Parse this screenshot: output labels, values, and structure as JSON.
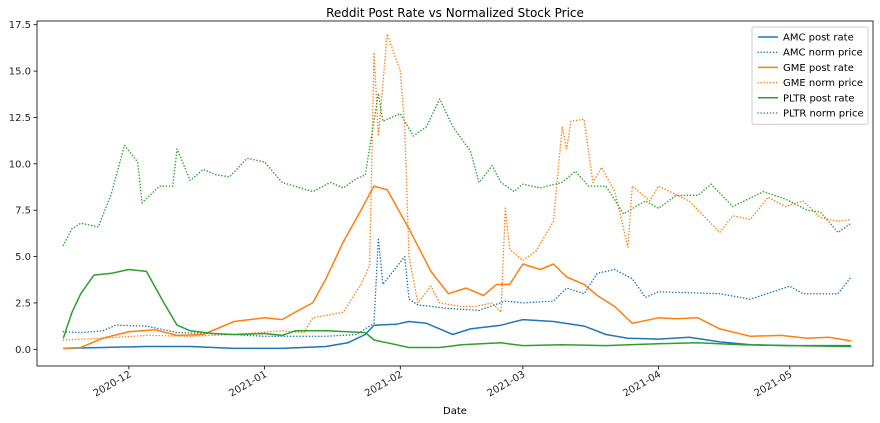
{
  "chart_data": {
    "type": "line",
    "title": "Reddit Post Rate vs Normalized Stock Price",
    "xlabel": "Date",
    "ylabel": "",
    "ylim": [
      -0.9,
      17.7
    ],
    "xlim": [
      "2020-11-10",
      "2021-05-20"
    ],
    "y_ticks": [
      "0.0",
      "2.5",
      "5.0",
      "7.5",
      "10.0",
      "12.5",
      "15.0",
      "17.5"
    ],
    "x_ticks": [
      {
        "date": "2020-12-01",
        "label": "2020-12"
      },
      {
        "date": "2021-01-01",
        "label": "2021-01"
      },
      {
        "date": "2021-02-01",
        "label": "2021-02"
      },
      {
        "date": "2021-03-01",
        "label": "2021-03"
      },
      {
        "date": "2021-04-01",
        "label": "2021-04"
      },
      {
        "date": "2021-05-01",
        "label": "2021-05"
      }
    ],
    "grid": false,
    "legend_position": "top-right",
    "series": [
      {
        "name": "AMC post rate",
        "color": "#1f77b4",
        "style": "solid",
        "points": [
          [
            "2020-11-16",
            0.05
          ],
          [
            "2020-11-25",
            0.1
          ],
          [
            "2020-12-05",
            0.15
          ],
          [
            "2020-12-15",
            0.15
          ],
          [
            "2020-12-25",
            0.05
          ],
          [
            "2021-01-05",
            0.05
          ],
          [
            "2021-01-15",
            0.15
          ],
          [
            "2021-01-20",
            0.35
          ],
          [
            "2021-01-24",
            0.8
          ],
          [
            "2021-01-26",
            1.3
          ],
          [
            "2021-01-31",
            1.35
          ],
          [
            "2021-02-03",
            1.5
          ],
          [
            "2021-02-07",
            1.4
          ],
          [
            "2021-02-11",
            1.0
          ],
          [
            "2021-02-13",
            0.8
          ],
          [
            "2021-02-17",
            1.1
          ],
          [
            "2021-02-24",
            1.3
          ],
          [
            "2021-03-01",
            1.6
          ],
          [
            "2021-03-08",
            1.5
          ],
          [
            "2021-03-15",
            1.25
          ],
          [
            "2021-03-20",
            0.8
          ],
          [
            "2021-03-25",
            0.6
          ],
          [
            "2021-04-01",
            0.55
          ],
          [
            "2021-04-08",
            0.65
          ],
          [
            "2021-04-15",
            0.4
          ],
          [
            "2021-04-22",
            0.25
          ],
          [
            "2021-05-01",
            0.2
          ],
          [
            "2021-05-15",
            0.2
          ]
        ]
      },
      {
        "name": "AMC norm price",
        "color": "#1f77b4",
        "style": "dotted",
        "points": [
          [
            "2020-11-16",
            0.95
          ],
          [
            "2020-11-20",
            0.9
          ],
          [
            "2020-11-25",
            1.0
          ],
          [
            "2020-11-28",
            1.3
          ],
          [
            "2020-12-05",
            1.25
          ],
          [
            "2020-12-12",
            0.9
          ],
          [
            "2020-12-20",
            0.85
          ],
          [
            "2021-01-01",
            0.7
          ],
          [
            "2021-01-15",
            0.7
          ],
          [
            "2021-01-22",
            0.8
          ],
          [
            "2021-01-26",
            1.4
          ],
          [
            "2021-01-27",
            6.0
          ],
          [
            "2021-01-28",
            3.5
          ],
          [
            "2021-02-02",
            5.0
          ],
          [
            "2021-02-03",
            2.7
          ],
          [
            "2021-02-05",
            2.4
          ],
          [
            "2021-02-12",
            2.2
          ],
          [
            "2021-02-19",
            2.1
          ],
          [
            "2021-02-25",
            2.6
          ],
          [
            "2021-03-01",
            2.5
          ],
          [
            "2021-03-08",
            2.6
          ],
          [
            "2021-03-11",
            3.3
          ],
          [
            "2021-03-15",
            3.0
          ],
          [
            "2021-03-18",
            4.1
          ],
          [
            "2021-03-22",
            4.3
          ],
          [
            "2021-03-26",
            3.8
          ],
          [
            "2021-03-29",
            2.8
          ],
          [
            "2021-04-01",
            3.1
          ],
          [
            "2021-04-15",
            3.0
          ],
          [
            "2021-04-22",
            2.7
          ],
          [
            "2021-05-01",
            3.4
          ],
          [
            "2021-05-04",
            3.0
          ],
          [
            "2021-05-12",
            3.0
          ],
          [
            "2021-05-15",
            3.9
          ]
        ]
      },
      {
        "name": "GME post rate",
        "color": "#ff7f0e",
        "style": "solid",
        "points": [
          [
            "2020-11-16",
            0.05
          ],
          [
            "2020-11-20",
            0.1
          ],
          [
            "2020-11-25",
            0.6
          ],
          [
            "2020-12-01",
            0.95
          ],
          [
            "2020-12-07",
            1.05
          ],
          [
            "2020-12-12",
            0.75
          ],
          [
            "2020-12-18",
            0.8
          ],
          [
            "2020-12-25",
            1.5
          ],
          [
            "2021-01-01",
            1.7
          ],
          [
            "2021-01-05",
            1.6
          ],
          [
            "2021-01-08",
            2.0
          ],
          [
            "2021-01-12",
            2.5
          ],
          [
            "2021-01-15",
            3.8
          ],
          [
            "2021-01-19",
            5.8
          ],
          [
            "2021-01-23",
            7.5
          ],
          [
            "2021-01-26",
            8.8
          ],
          [
            "2021-01-29",
            8.6
          ],
          [
            "2021-02-03",
            6.5
          ],
          [
            "2021-02-08",
            4.2
          ],
          [
            "2021-02-12",
            3.0
          ],
          [
            "2021-02-16",
            3.3
          ],
          [
            "2021-02-20",
            2.9
          ],
          [
            "2021-02-23",
            3.5
          ],
          [
            "2021-02-26",
            3.5
          ],
          [
            "2021-03-01",
            4.6
          ],
          [
            "2021-03-05",
            4.3
          ],
          [
            "2021-03-08",
            4.6
          ],
          [
            "2021-03-11",
            3.9
          ],
          [
            "2021-03-15",
            3.5
          ],
          [
            "2021-03-18",
            2.9
          ],
          [
            "2021-03-22",
            2.3
          ],
          [
            "2021-03-26",
            1.4
          ],
          [
            "2021-04-01",
            1.7
          ],
          [
            "2021-04-05",
            1.65
          ],
          [
            "2021-04-10",
            1.7
          ],
          [
            "2021-04-15",
            1.1
          ],
          [
            "2021-04-22",
            0.7
          ],
          [
            "2021-04-29",
            0.75
          ],
          [
            "2021-05-05",
            0.6
          ],
          [
            "2021-05-10",
            0.65
          ],
          [
            "2021-05-15",
            0.45
          ]
        ]
      },
      {
        "name": "GME norm price",
        "color": "#ff7f0e",
        "style": "dotted",
        "points": [
          [
            "2020-11-16",
            0.5
          ],
          [
            "2020-11-25",
            0.6
          ],
          [
            "2020-12-05",
            0.75
          ],
          [
            "2020-12-15",
            0.7
          ],
          [
            "2020-12-25",
            0.8
          ],
          [
            "2021-01-05",
            1.0
          ],
          [
            "2021-01-10",
            0.9
          ],
          [
            "2021-01-12",
            1.7
          ],
          [
            "2021-01-19",
            2.0
          ],
          [
            "2021-01-23",
            3.5
          ],
          [
            "2021-01-25",
            4.5
          ],
          [
            "2021-01-26",
            16.0
          ],
          [
            "2021-01-27",
            11.5
          ],
          [
            "2021-01-29",
            17.0
          ],
          [
            "2021-02-01",
            15.0
          ],
          [
            "2021-02-02",
            12.0
          ],
          [
            "2021-02-03",
            5.0
          ],
          [
            "2021-02-05",
            2.5
          ],
          [
            "2021-02-08",
            3.4
          ],
          [
            "2021-02-10",
            2.5
          ],
          [
            "2021-02-15",
            2.3
          ],
          [
            "2021-02-18",
            2.3
          ],
          [
            "2021-02-22",
            2.5
          ],
          [
            "2021-02-24",
            2.0
          ],
          [
            "2021-02-25",
            7.6
          ],
          [
            "2021-02-26",
            5.4
          ],
          [
            "2021-03-01",
            4.8
          ],
          [
            "2021-03-04",
            5.3
          ],
          [
            "2021-03-08",
            6.9
          ],
          [
            "2021-03-10",
            12.0
          ],
          [
            "2021-03-11",
            10.8
          ],
          [
            "2021-03-12",
            12.3
          ],
          [
            "2021-03-15",
            12.4
          ],
          [
            "2021-03-17",
            9.0
          ],
          [
            "2021-03-19",
            9.8
          ],
          [
            "2021-03-22",
            8.5
          ],
          [
            "2021-03-25",
            5.5
          ],
          [
            "2021-03-26",
            8.8
          ],
          [
            "2021-03-30",
            8.0
          ],
          [
            "2021-04-01",
            8.8
          ],
          [
            "2021-04-08",
            8.0
          ],
          [
            "2021-04-15",
            6.3
          ],
          [
            "2021-04-18",
            7.2
          ],
          [
            "2021-04-22",
            7.0
          ],
          [
            "2021-04-26",
            8.2
          ],
          [
            "2021-04-30",
            7.7
          ],
          [
            "2021-05-04",
            8.0
          ],
          [
            "2021-05-08",
            7.1
          ],
          [
            "2021-05-12",
            6.9
          ],
          [
            "2021-05-15",
            7.0
          ]
        ]
      },
      {
        "name": "PLTR post rate",
        "color": "#2ca02c",
        "style": "solid",
        "points": [
          [
            "2020-11-16",
            0.6
          ],
          [
            "2020-11-18",
            2.0
          ],
          [
            "2020-11-20",
            3.0
          ],
          [
            "2020-11-23",
            4.0
          ],
          [
            "2020-11-27",
            4.1
          ],
          [
            "2020-12-01",
            4.3
          ],
          [
            "2020-12-05",
            4.2
          ],
          [
            "2020-12-09",
            2.5
          ],
          [
            "2020-12-12",
            1.3
          ],
          [
            "2020-12-15",
            1.0
          ],
          [
            "2020-12-20",
            0.85
          ],
          [
            "2020-12-25",
            0.8
          ],
          [
            "2021-01-01",
            0.85
          ],
          [
            "2021-01-05",
            0.75
          ],
          [
            "2021-01-08",
            1.0
          ],
          [
            "2021-01-15",
            1.0
          ],
          [
            "2021-01-20",
            0.95
          ],
          [
            "2021-01-24",
            0.9
          ],
          [
            "2021-01-26",
            0.5
          ],
          [
            "2021-01-30",
            0.3
          ],
          [
            "2021-02-03",
            0.1
          ],
          [
            "2021-02-10",
            0.1
          ],
          [
            "2021-02-15",
            0.25
          ],
          [
            "2021-02-24",
            0.35
          ],
          [
            "2021-03-01",
            0.2
          ],
          [
            "2021-03-10",
            0.25
          ],
          [
            "2021-03-20",
            0.2
          ],
          [
            "2021-04-01",
            0.3
          ],
          [
            "2021-04-10",
            0.35
          ],
          [
            "2021-04-20",
            0.25
          ],
          [
            "2021-05-01",
            0.2
          ],
          [
            "2021-05-15",
            0.15
          ]
        ]
      },
      {
        "name": "PLTR norm price",
        "color": "#2ca02c",
        "style": "dotted",
        "points": [
          [
            "2020-11-16",
            5.6
          ],
          [
            "2020-11-18",
            6.5
          ],
          [
            "2020-11-20",
            6.8
          ],
          [
            "2020-11-24",
            6.6
          ],
          [
            "2020-11-27",
            8.4
          ],
          [
            "2020-11-30",
            11.0
          ],
          [
            "2020-12-03",
            10.1
          ],
          [
            "2020-12-04",
            7.9
          ],
          [
            "2020-12-08",
            8.8
          ],
          [
            "2020-12-11",
            8.8
          ],
          [
            "2020-12-12",
            10.8
          ],
          [
            "2020-12-15",
            9.1
          ],
          [
            "2020-12-18",
            9.7
          ],
          [
            "2020-12-21",
            9.4
          ],
          [
            "2020-12-24",
            9.3
          ],
          [
            "2020-12-28",
            10.3
          ],
          [
            "2021-01-01",
            10.1
          ],
          [
            "2021-01-05",
            9.0
          ],
          [
            "2021-01-12",
            8.5
          ],
          [
            "2021-01-16",
            9.0
          ],
          [
            "2021-01-19",
            8.7
          ],
          [
            "2021-01-22",
            9.2
          ],
          [
            "2021-01-24",
            9.4
          ],
          [
            "2021-01-26",
            12.3
          ],
          [
            "2021-01-27",
            13.8
          ],
          [
            "2021-01-28",
            12.3
          ],
          [
            "2021-02-01",
            12.7
          ],
          [
            "2021-02-04",
            11.5
          ],
          [
            "2021-02-07",
            12.0
          ],
          [
            "2021-02-10",
            13.5
          ],
          [
            "2021-02-13",
            12.0
          ],
          [
            "2021-02-17",
            10.7
          ],
          [
            "2021-02-19",
            9.0
          ],
          [
            "2021-02-22",
            9.9
          ],
          [
            "2021-02-24",
            9.0
          ],
          [
            "2021-02-27",
            8.5
          ],
          [
            "2021-03-01",
            8.9
          ],
          [
            "2021-03-05",
            8.7
          ],
          [
            "2021-03-10",
            9.0
          ],
          [
            "2021-03-13",
            9.6
          ],
          [
            "2021-03-16",
            8.8
          ],
          [
            "2021-03-20",
            8.8
          ],
          [
            "2021-03-24",
            7.3
          ],
          [
            "2021-03-29",
            8.0
          ],
          [
            "2021-04-01",
            7.6
          ],
          [
            "2021-04-05",
            8.3
          ],
          [
            "2021-04-10",
            8.3
          ],
          [
            "2021-04-13",
            8.9
          ],
          [
            "2021-04-18",
            7.7
          ],
          [
            "2021-04-25",
            8.5
          ],
          [
            "2021-04-30",
            8.1
          ],
          [
            "2021-05-05",
            7.5
          ],
          [
            "2021-05-08",
            7.4
          ],
          [
            "2021-05-12",
            6.3
          ],
          [
            "2021-05-15",
            6.8
          ]
        ]
      }
    ]
  }
}
